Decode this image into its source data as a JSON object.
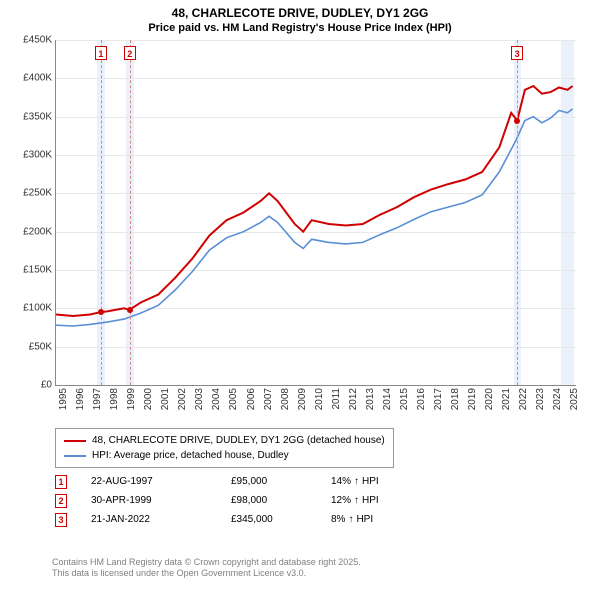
{
  "title_line1": "48, CHARLECOTE DRIVE, DUDLEY, DY1 2GG",
  "title_line2": "Price paid vs. HM Land Registry's House Price Index (HPI)",
  "chart": {
    "ylim": [
      0,
      450000
    ],
    "ytick_step": 50000,
    "yticks": [
      "£0",
      "£50K",
      "£100K",
      "£150K",
      "£200K",
      "£250K",
      "£300K",
      "£350K",
      "£400K",
      "£450K"
    ],
    "xlim": [
      1995,
      2025.5
    ],
    "xticks": [
      1995,
      1996,
      1997,
      1998,
      1999,
      2000,
      2001,
      2002,
      2003,
      2004,
      2005,
      2006,
      2007,
      2008,
      2009,
      2010,
      2011,
      2012,
      2013,
      2014,
      2015,
      2016,
      2017,
      2018,
      2019,
      2020,
      2021,
      2022,
      2023,
      2024,
      2025
    ],
    "background": "#ffffff",
    "grid_color": "#e8e8e8",
    "series": {
      "price_paid": {
        "color": "#d00000",
        "width": 2,
        "label": "48, CHARLECOTE DRIVE, DUDLEY, DY1 2GG (detached house)",
        "data": [
          [
            1995,
            92000
          ],
          [
            1996,
            90000
          ],
          [
            1997,
            92000
          ],
          [
            1997.6,
            95000
          ],
          [
            1998,
            96000
          ],
          [
            1999,
            100000
          ],
          [
            1999.3,
            98000
          ],
          [
            2000,
            108000
          ],
          [
            2001,
            118000
          ],
          [
            2002,
            140000
          ],
          [
            2003,
            165000
          ],
          [
            2004,
            195000
          ],
          [
            2005,
            215000
          ],
          [
            2006,
            225000
          ],
          [
            2007,
            240000
          ],
          [
            2007.5,
            250000
          ],
          [
            2008,
            240000
          ],
          [
            2009,
            210000
          ],
          [
            2009.5,
            200000
          ],
          [
            2010,
            215000
          ],
          [
            2011,
            210000
          ],
          [
            2012,
            208000
          ],
          [
            2013,
            210000
          ],
          [
            2014,
            222000
          ],
          [
            2015,
            232000
          ],
          [
            2016,
            245000
          ],
          [
            2017,
            255000
          ],
          [
            2018,
            262000
          ],
          [
            2019,
            268000
          ],
          [
            2020,
            278000
          ],
          [
            2021,
            310000
          ],
          [
            2021.7,
            355000
          ],
          [
            2022.05,
            345000
          ],
          [
            2022.5,
            385000
          ],
          [
            2023,
            390000
          ],
          [
            2023.5,
            380000
          ],
          [
            2024,
            382000
          ],
          [
            2024.5,
            388000
          ],
          [
            2025,
            385000
          ],
          [
            2025.3,
            390000
          ]
        ]
      },
      "hpi": {
        "color": "#5a8fd6",
        "width": 1.6,
        "label": "HPI: Average price, detached house, Dudley",
        "data": [
          [
            1995,
            78000
          ],
          [
            1996,
            77000
          ],
          [
            1997,
            79000
          ],
          [
            1998,
            82000
          ],
          [
            1999,
            86000
          ],
          [
            2000,
            94000
          ],
          [
            2001,
            104000
          ],
          [
            2002,
            124000
          ],
          [
            2003,
            148000
          ],
          [
            2004,
            176000
          ],
          [
            2005,
            192000
          ],
          [
            2006,
            200000
          ],
          [
            2007,
            212000
          ],
          [
            2007.5,
            220000
          ],
          [
            2008,
            212000
          ],
          [
            2009,
            186000
          ],
          [
            2009.5,
            178000
          ],
          [
            2010,
            190000
          ],
          [
            2011,
            186000
          ],
          [
            2012,
            184000
          ],
          [
            2013,
            186000
          ],
          [
            2014,
            196000
          ],
          [
            2015,
            205000
          ],
          [
            2016,
            216000
          ],
          [
            2017,
            226000
          ],
          [
            2018,
            232000
          ],
          [
            2019,
            238000
          ],
          [
            2020,
            248000
          ],
          [
            2021,
            278000
          ],
          [
            2022,
            320000
          ],
          [
            2022.5,
            345000
          ],
          [
            2023,
            350000
          ],
          [
            2023.5,
            342000
          ],
          [
            2024,
            348000
          ],
          [
            2024.5,
            358000
          ],
          [
            2025,
            355000
          ],
          [
            2025.3,
            360000
          ]
        ]
      }
    },
    "bands": [
      {
        "from": 1997.4,
        "to": 1997.85,
        "color": "#dde8f7"
      },
      {
        "from": 1999.1,
        "to": 1999.55,
        "color": "#dde8f7"
      },
      {
        "from": 2021.85,
        "to": 2022.3,
        "color": "#dde8f7"
      },
      {
        "from": 2024.6,
        "to": 2025.4,
        "color": "#dde8f7"
      }
    ],
    "vlines": [
      1997.63,
      1999.33,
      2022.05
    ],
    "marker_boxes": [
      {
        "n": "1",
        "x": 1997.63
      },
      {
        "n": "2",
        "x": 1999.33
      },
      {
        "n": "3",
        "x": 2022.05
      }
    ],
    "points": [
      {
        "x": 1997.63,
        "y": 95000
      },
      {
        "x": 1999.33,
        "y": 98000
      },
      {
        "x": 2022.05,
        "y": 345000
      }
    ]
  },
  "legend": {
    "items": [
      {
        "color": "#d00000",
        "label": "48, CHARLECOTE DRIVE, DUDLEY, DY1 2GG (detached house)"
      },
      {
        "color": "#5a8fd6",
        "label": "HPI: Average price, detached house, Dudley"
      }
    ]
  },
  "sales": [
    {
      "n": "1",
      "date": "22-AUG-1997",
      "price": "£95,000",
      "pct": "14%",
      "suffix": "HPI"
    },
    {
      "n": "2",
      "date": "30-APR-1999",
      "price": "£98,000",
      "pct": "12%",
      "suffix": "HPI"
    },
    {
      "n": "3",
      "date": "21-JAN-2022",
      "price": "£345,000",
      "pct": "8%",
      "suffix": "HPI"
    }
  ],
  "footer_line1": "Contains HM Land Registry data © Crown copyright and database right 2025.",
  "footer_line2": "This data is licensed under the Open Government Licence v3.0."
}
